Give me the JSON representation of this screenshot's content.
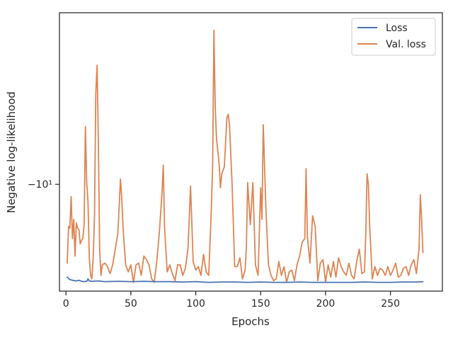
{
  "chart_data": {
    "type": "line",
    "xlabel": "Epochs",
    "ylabel": "Negative log-likelihood",
    "xlim": [
      -5,
      290
    ],
    "ylim": [
      -13.05,
      -5.1
    ],
    "yscale": "symlog (negated values, printed as -10^1)",
    "xticks": [
      0,
      50,
      100,
      150,
      200,
      250
    ],
    "xtick_labels": [
      "0",
      "50",
      "100",
      "150",
      "200",
      "250"
    ],
    "yticks": [
      -10
    ],
    "ytick_labels": [
      "−10¹"
    ],
    "grid": false,
    "legend_position": "top-right",
    "series": [
      {
        "name": "Loss",
        "color": "#4c72b0",
        "x": [
          1,
          3,
          5,
          8,
          10,
          12,
          14,
          16,
          17,
          18,
          20,
          25,
          30,
          40,
          50,
          60,
          70,
          80,
          90,
          100,
          110,
          120,
          130,
          140,
          150,
          160,
          170,
          180,
          190,
          200,
          210,
          220,
          230,
          240,
          250,
          260,
          270,
          275
        ],
        "values": [
          -12.65,
          -12.72,
          -12.74,
          -12.76,
          -12.74,
          -12.77,
          -12.78,
          -12.77,
          -12.7,
          -12.76,
          -12.77,
          -12.76,
          -12.78,
          -12.77,
          -12.78,
          -12.77,
          -12.78,
          -12.78,
          -12.79,
          -12.78,
          -12.8,
          -12.79,
          -12.79,
          -12.8,
          -12.79,
          -12.8,
          -12.8,
          -12.79,
          -12.8,
          -12.8,
          -12.8,
          -12.8,
          -12.79,
          -12.8,
          -12.8,
          -12.79,
          -12.79,
          -12.78
        ]
      },
      {
        "name": "Val. loss",
        "color": "#dd8452",
        "x": [
          1,
          2,
          3,
          4,
          5,
          6,
          7,
          8,
          9,
          10,
          11,
          12,
          13,
          14,
          15,
          16,
          17,
          18,
          19,
          20,
          21,
          22,
          23,
          24,
          25,
          26,
          27,
          28,
          30,
          32,
          34,
          36,
          38,
          40,
          42,
          43,
          44,
          46,
          48,
          50,
          52,
          54,
          56,
          58,
          60,
          62,
          64,
          66,
          68,
          70,
          72,
          74,
          75,
          76,
          78,
          80,
          82,
          84,
          86,
          88,
          90,
          92,
          94,
          96,
          98,
          100,
          102,
          104,
          106,
          108,
          110,
          112,
          113,
          114,
          115,
          116,
          118,
          119,
          120,
          122,
          124,
          125,
          126,
          128,
          130,
          132,
          134,
          136,
          138,
          139,
          140,
          142,
          144,
          146,
          148,
          150,
          151,
          152,
          154,
          156,
          158,
          160,
          162,
          164,
          166,
          168,
          170,
          172,
          174,
          176,
          178,
          180,
          182,
          184,
          185,
          186,
          188,
          190,
          192,
          194,
          196,
          198,
          200,
          202,
          204,
          206,
          208,
          210,
          212,
          214,
          216,
          218,
          220,
          222,
          224,
          226,
          228,
          230,
          231,
          232,
          233,
          234,
          236,
          238,
          240,
          242,
          244,
          246,
          248,
          250,
          252,
          254,
          256,
          258,
          260,
          262,
          264,
          266,
          268,
          270,
          272,
          273,
          274,
          275
        ],
        "values": [
          -12.25,
          -11.2,
          -11.25,
          -10.35,
          -11.55,
          -11.0,
          -12.05,
          -11.1,
          -11.25,
          -11.3,
          -11.7,
          -11.6,
          -11.55,
          -11.15,
          -8.35,
          -9.95,
          -10.5,
          -12.1,
          -12.6,
          -12.7,
          -12.1,
          -10.9,
          -7.4,
          -6.6,
          -8.9,
          -11.9,
          -12.6,
          -12.3,
          -12.25,
          -12.35,
          -12.55,
          -12.3,
          -11.85,
          -11.4,
          -9.85,
          -10.4,
          -11.25,
          -12.3,
          -12.5,
          -12.3,
          -12.8,
          -12.3,
          -12.25,
          -12.6,
          -12.05,
          -12.15,
          -12.3,
          -12.7,
          -12.8,
          -12.2,
          -11.35,
          -10.25,
          -9.45,
          -11.25,
          -12.5,
          -12.3,
          -12.55,
          -12.75,
          -12.3,
          -12.3,
          -12.6,
          -12.4,
          -11.85,
          -10.05,
          -12.2,
          -12.45,
          -12.35,
          -12.6,
          -12.0,
          -12.5,
          -12.6,
          -10.7,
          -9.45,
          -5.6,
          -7.8,
          -8.7,
          -9.4,
          -10.1,
          -9.7,
          -9.5,
          -8.1,
          -8.0,
          -8.3,
          -10.0,
          -12.35,
          -12.35,
          -12.1,
          -12.7,
          -12.45,
          -11.8,
          -9.95,
          -11.15,
          -9.95,
          -12.3,
          -12.6,
          -10.1,
          -11.0,
          -8.3,
          -10.65,
          -12.3,
          -12.6,
          -12.75,
          -12.7,
          -12.2,
          -12.6,
          -12.35,
          -12.8,
          -12.5,
          -12.45,
          -12.75,
          -12.3,
          -12.05,
          -11.65,
          -11.55,
          -9.55,
          -11.5,
          -12.25,
          -10.9,
          -11.2,
          -12.75,
          -12.25,
          -12.15,
          -12.8,
          -12.3,
          -12.65,
          -12.2,
          -12.65,
          -12.1,
          -12.35,
          -12.5,
          -12.6,
          -12.25,
          -12.6,
          -12.7,
          -12.2,
          -11.85,
          -12.55,
          -12.5,
          -11.4,
          -9.7,
          -10.0,
          -11.2,
          -12.7,
          -12.35,
          -12.6,
          -12.4,
          -12.45,
          -12.6,
          -12.35,
          -12.6,
          -12.45,
          -12.25,
          -12.65,
          -12.6,
          -12.4,
          -12.35,
          -12.6,
          -12.3,
          -12.15,
          -12.55,
          -11.85,
          -10.3,
          -11.0,
          -11.95
        ]
      }
    ]
  }
}
